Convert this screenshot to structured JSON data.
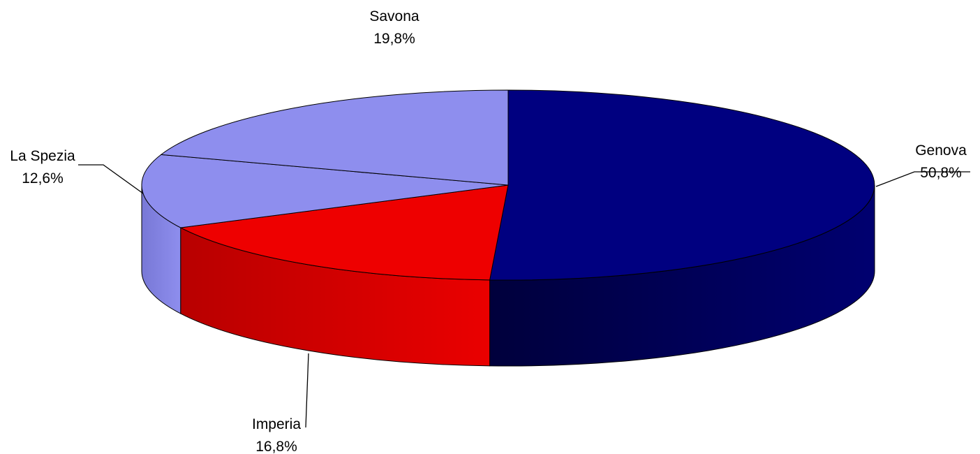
{
  "chart_data": {
    "type": "pie",
    "style": "3d",
    "title": "",
    "slices": [
      {
        "label": "Genova",
        "value": 50.8,
        "percent_label": "50,8%",
        "color": "#000080",
        "side_dark": "#00003c",
        "side_light": "#000070"
      },
      {
        "label": "Imperia",
        "value": 16.8,
        "percent_label": "16,8%",
        "color": "#ee0000",
        "side_dark": "#b80000",
        "side_light": "#ea0000"
      },
      {
        "label": "La Spezia",
        "value": 12.6,
        "percent_label": "12,6%",
        "color": "#8e8eee",
        "side_dark": "#7878d6",
        "side_light": "#8e8eee"
      },
      {
        "label": "Savona",
        "value": 19.8,
        "percent_label": "19,8%",
        "color": "#8e8eee",
        "side_dark": "#7878d6",
        "side_light": "#8e8eee"
      }
    ]
  }
}
